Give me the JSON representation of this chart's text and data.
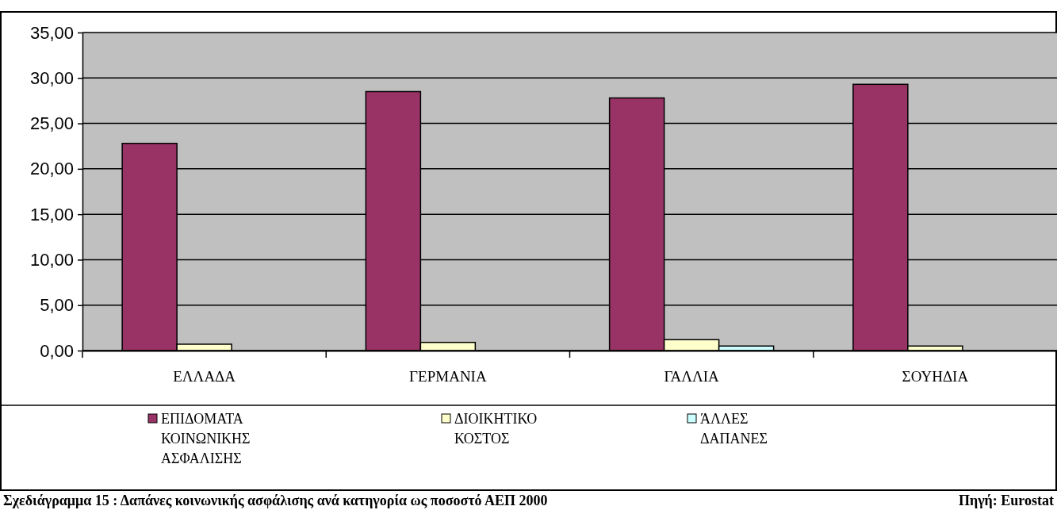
{
  "chart_data": {
    "type": "bar",
    "categories": [
      "ΕΛΛΑΔΑ",
      "ΓΕΡΜΑΝΙΑ",
      "ΓΑΛΛΙΑ",
      "ΣΟΥΗΔΙΑ"
    ],
    "series": [
      {
        "name": "ΕΠΙΔΟΜΑΤΑ ΚΟΙΝΩΝΙΚΗΣ ΑΣΦΑΛΙΣΗΣ",
        "color": "#993366",
        "values": [
          22.8,
          28.5,
          27.8,
          29.3
        ]
      },
      {
        "name": "ΔΙΟΙΚΗΤΙΚΟ ΚΟΣΤΟΣ",
        "color": "#ffffcc",
        "values": [
          0.7,
          0.9,
          1.2,
          0.5
        ]
      },
      {
        "name": "ΆΛΛΕΣ ΔΑΠΑΝΕΣ",
        "color": "#ccffff",
        "values": [
          0,
          0,
          0.5,
          0
        ]
      }
    ],
    "ylim": [
      0,
      35
    ],
    "yticks": [
      {
        "value": 0,
        "label": "0,00"
      },
      {
        "value": 5,
        "label": "5,00"
      },
      {
        "value": 10,
        "label": "10,00"
      },
      {
        "value": 15,
        "label": "15,00"
      },
      {
        "value": 20,
        "label": "20,00"
      },
      {
        "value": 25,
        "label": "25,00"
      },
      {
        "value": 30,
        "label": "30,00"
      },
      {
        "value": 35,
        "label": "35,00"
      }
    ],
    "grid": "y",
    "legend": "bottom",
    "annotations": [
      "Σχεδιάγραμμα 15 : Δαπάνες κοινωνικής ασφάλισης ανά κατηγορία ως ποσοστό ΑΕΠ 2000",
      "Πηγή: Eurostat"
    ]
  }
}
